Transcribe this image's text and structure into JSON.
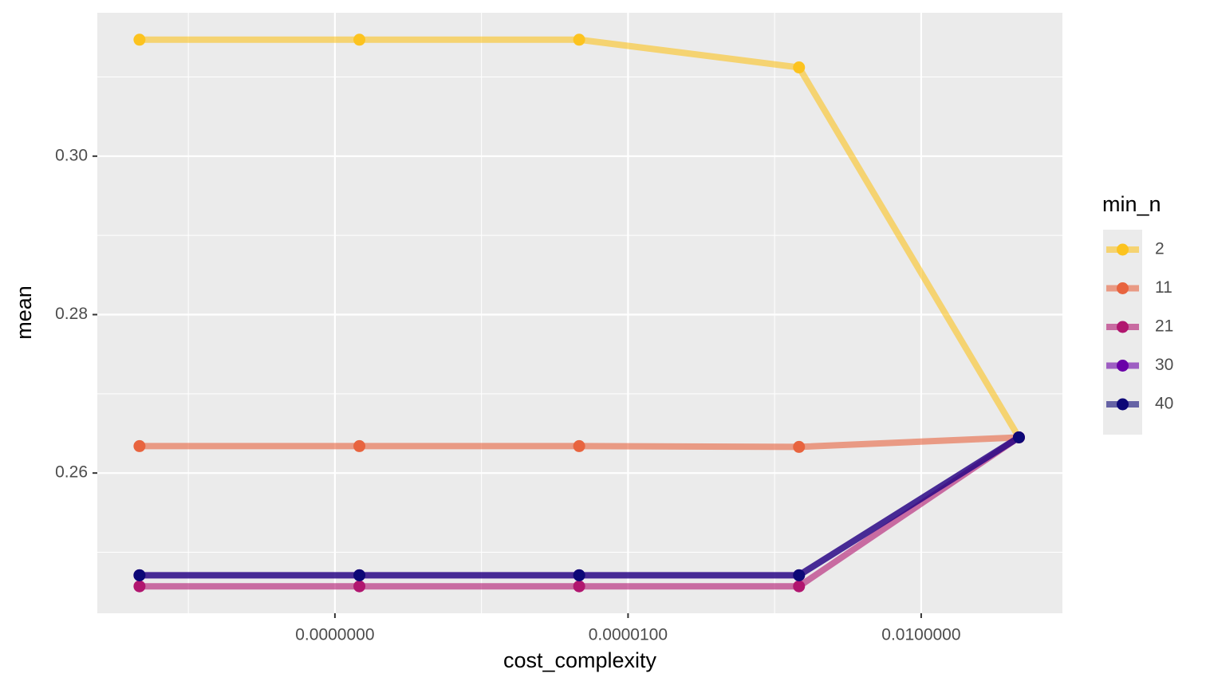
{
  "chart_data": {
    "type": "line",
    "x_label": "cost_complexity",
    "y_label": "mean",
    "x": [
      1e-10,
      1.78e-08,
      3.16e-06,
      0.000562,
      0.1
    ],
    "xscale": "log",
    "xlim": [
      3.7e-11,
      0.279
    ],
    "xticks": [
      {
        "value": 1e-08,
        "label": "0.0000000"
      },
      {
        "value": 1e-05,
        "label": "0.0000100"
      },
      {
        "value": 0.01,
        "label": "0.0100000"
      }
    ],
    "ylim": [
      0.2423,
      0.3181
    ],
    "yticks": [
      {
        "value": 0.26,
        "label": "0.26"
      },
      {
        "value": 0.28,
        "label": "0.28"
      },
      {
        "value": 0.3,
        "label": "0.30"
      }
    ],
    "grid": true,
    "legend_title": "min_n",
    "series": [
      {
        "name": "2",
        "color": "#FCC31F",
        "values": [
          0.3147,
          0.3147,
          0.3147,
          0.3112,
          0.2645
        ]
      },
      {
        "name": "11",
        "color": "#E8643F",
        "values": [
          0.2634,
          0.2634,
          0.2634,
          0.2633,
          0.2645
        ]
      },
      {
        "name": "21",
        "color": "#B1166F",
        "values": [
          0.2457,
          0.2457,
          0.2457,
          0.2457,
          0.2645
        ]
      },
      {
        "name": "30",
        "color": "#6A00A8",
        "values": [
          0.2471,
          0.2471,
          0.2471,
          0.2471,
          0.2645
        ]
      },
      {
        "name": "40",
        "color": "#0D0877",
        "values": [
          0.2471,
          0.2471,
          0.2471,
          0.2471,
          0.2645
        ]
      }
    ]
  }
}
